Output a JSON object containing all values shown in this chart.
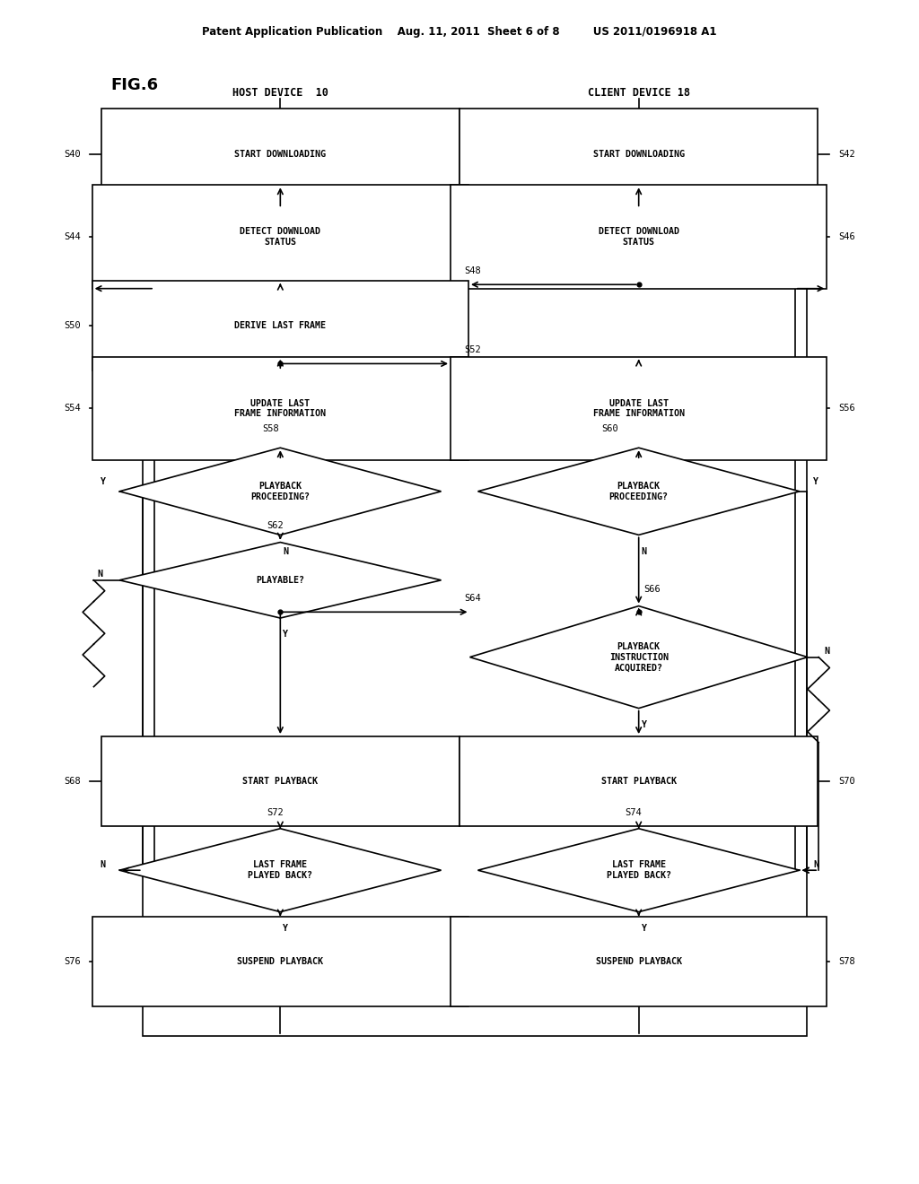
{
  "title_text": "Patent Application Publication    Aug. 11, 2011  Sheet 6 of 8         US 2011/0196918 A1",
  "fig_label": "FIG.6",
  "host_label": "HOST DEVICE  10",
  "client_label": "CLIENT DEVICE 18",
  "bg_color": "#ffffff"
}
